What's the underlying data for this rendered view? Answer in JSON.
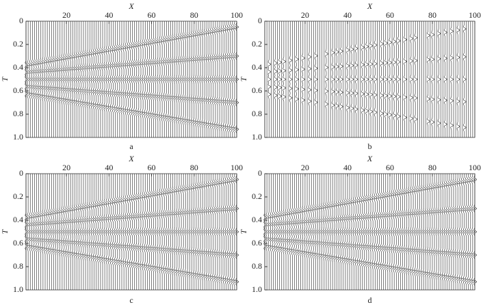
{
  "chart_data": [
    {
      "type": "wiggle",
      "caption": "a",
      "xlabel": "X",
      "ylabel": "T",
      "x_axis_position": "top",
      "y_inverted": true,
      "xlim": [
        1,
        100
      ],
      "ylim": [
        0,
        1
      ],
      "xticks": [
        20,
        40,
        60,
        80,
        100
      ],
      "yticks": [
        0,
        0.2,
        0.4,
        0.6,
        0.8,
        {
          "value": 1,
          "label": "1.0"
        }
      ],
      "color": "#111111",
      "series": [
        {
          "x": [
            0,
            100
          ],
          "values": [
            0.38,
            0.05
          ]
        },
        {
          "x": [
            0,
            100
          ],
          "values": [
            0.44,
            0.3
          ]
        },
        {
          "x": [
            0,
            100
          ],
          "values": [
            0.5,
            0.5
          ]
        },
        {
          "x": [
            0,
            100
          ],
          "values": [
            0.56,
            0.7
          ]
        },
        {
          "x": [
            0,
            100
          ],
          "values": [
            0.62,
            0.93
          ]
        }
      ]
    },
    {
      "type": "wiggle",
      "caption": "b",
      "xlabel": "X",
      "ylabel": "T",
      "x_axis_position": "top",
      "y_inverted": true,
      "xlim": [
        1,
        100
      ],
      "ylim": [
        0,
        1
      ],
      "xticks": [
        20,
        40,
        60,
        80,
        100
      ],
      "yticks": [
        0,
        0.2,
        0.4,
        0.6,
        0.8,
        {
          "value": 1,
          "label": "1.0"
        }
      ],
      "color": "#111111",
      "kept_traces": [
        3,
        6,
        8,
        10,
        13,
        16,
        19,
        22,
        25,
        30,
        33,
        35,
        37,
        40,
        42,
        44,
        47,
        49,
        51,
        53,
        56,
        58,
        60,
        62,
        64,
        67,
        70,
        72,
        78,
        80,
        83,
        86,
        89,
        92,
        95
      ],
      "series": [
        {
          "x": [
            0,
            100
          ],
          "values": [
            0.38,
            0.05
          ]
        },
        {
          "x": [
            0,
            100
          ],
          "values": [
            0.44,
            0.3
          ]
        },
        {
          "x": [
            0,
            100
          ],
          "values": [
            0.5,
            0.5
          ]
        },
        {
          "x": [
            0,
            100
          ],
          "values": [
            0.56,
            0.7
          ]
        },
        {
          "x": [
            0,
            100
          ],
          "values": [
            0.62,
            0.93
          ]
        }
      ]
    },
    {
      "type": "wiggle",
      "caption": "c",
      "xlabel": "X",
      "ylabel": "T",
      "x_axis_position": "top",
      "y_inverted": true,
      "xlim": [
        1,
        100
      ],
      "ylim": [
        0,
        1
      ],
      "xticks": [
        20,
        40,
        60,
        80,
        100
      ],
      "yticks": [
        0,
        0.2,
        0.4,
        0.6,
        0.8,
        {
          "value": 1,
          "label": "1.0"
        }
      ],
      "color": "#111111",
      "series": [
        {
          "x": [
            0,
            100
          ],
          "values": [
            0.38,
            0.05
          ]
        },
        {
          "x": [
            0,
            100
          ],
          "values": [
            0.44,
            0.3
          ]
        },
        {
          "x": [
            0,
            100
          ],
          "values": [
            0.5,
            0.5
          ]
        },
        {
          "x": [
            0,
            100
          ],
          "values": [
            0.56,
            0.7
          ]
        },
        {
          "x": [
            0,
            100
          ],
          "values": [
            0.62,
            0.93
          ]
        }
      ]
    },
    {
      "type": "wiggle",
      "caption": "d",
      "xlabel": "X",
      "ylabel": "T",
      "x_axis_position": "top",
      "y_inverted": true,
      "xlim": [
        1,
        100
      ],
      "ylim": [
        0,
        1
      ],
      "xticks": [
        20,
        40,
        60,
        80,
        100
      ],
      "yticks": [
        0,
        0.2,
        0.4,
        0.6,
        0.8,
        {
          "value": 1,
          "label": "1.0"
        }
      ],
      "color": "#111111",
      "series": [
        {
          "x": [
            0,
            100
          ],
          "values": [
            0.38,
            0.05
          ]
        },
        {
          "x": [
            0,
            100
          ],
          "values": [
            0.44,
            0.3
          ]
        },
        {
          "x": [
            0,
            100
          ],
          "values": [
            0.5,
            0.5
          ]
        },
        {
          "x": [
            0,
            100
          ],
          "values": [
            0.56,
            0.7
          ]
        },
        {
          "x": [
            0,
            100
          ],
          "values": [
            0.62,
            0.93
          ]
        }
      ]
    }
  ]
}
